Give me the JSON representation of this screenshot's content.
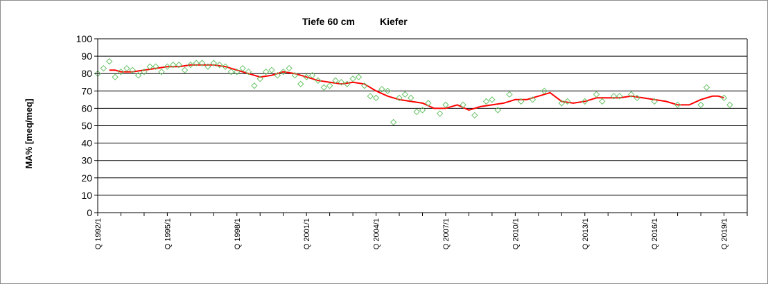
{
  "chart_data": {
    "type": "scatter",
    "title_left": "Tiefe  60 cm",
    "title_right": "Kiefer",
    "ylabel": "MA% [meq/meq]",
    "ylim": [
      0,
      100
    ],
    "yticks": [
      0,
      10,
      20,
      30,
      40,
      50,
      60,
      70,
      80,
      90,
      100
    ],
    "grid": "horizontal",
    "x_tick_labels": [
      {
        "label": "Q 1992/1",
        "t": 1992.0
      },
      {
        "label": "Q 1995/1",
        "t": 1995.0
      },
      {
        "label": "Q 1998/1",
        "t": 1998.0
      },
      {
        "label": "Q 2001/1",
        "t": 2001.0
      },
      {
        "label": "Q 2004/1",
        "t": 2004.0
      },
      {
        "label": "Q 2007/1",
        "t": 2007.0
      },
      {
        "label": "Q 2010/1",
        "t": 2010.0
      },
      {
        "label": "Q 2013/1",
        "t": 2013.0
      },
      {
        "label": "Q 2016/1",
        "t": 2016.0
      },
      {
        "label": "Q 2019/1",
        "t": 2019.0
      }
    ],
    "xlim": [
      1992.0,
      2020.0
    ],
    "colors": {
      "points": "#66c266",
      "trend": "#ff0000",
      "grid": "#000000"
    },
    "series": [
      {
        "marker": "diamond",
        "points": [
          [
            1992.0,
            80
          ],
          [
            1992.25,
            83
          ],
          [
            1992.5,
            87
          ],
          [
            1992.75,
            78
          ],
          [
            1993.0,
            81
          ],
          [
            1993.25,
            83
          ],
          [
            1993.5,
            82
          ],
          [
            1993.75,
            79
          ],
          [
            1994.0,
            81
          ],
          [
            1994.25,
            84
          ],
          [
            1994.5,
            84
          ],
          [
            1994.75,
            81
          ],
          [
            1995.0,
            84
          ],
          [
            1995.25,
            85
          ],
          [
            1995.5,
            85
          ],
          [
            1995.75,
            82
          ],
          [
            1996.0,
            85
          ],
          [
            1996.25,
            86
          ],
          [
            1996.5,
            86
          ],
          [
            1996.75,
            84
          ],
          [
            1997.0,
            86
          ],
          [
            1997.25,
            85
          ],
          [
            1997.5,
            84
          ],
          [
            1997.75,
            81
          ],
          [
            1998.0,
            81
          ],
          [
            1998.25,
            83
          ],
          [
            1998.5,
            81
          ],
          [
            1998.75,
            73
          ],
          [
            1999.0,
            77
          ],
          [
            1999.25,
            81
          ],
          [
            1999.5,
            82
          ],
          [
            1999.75,
            79
          ],
          [
            2000.0,
            81
          ],
          [
            2000.25,
            83
          ],
          [
            2000.5,
            79
          ],
          [
            2000.75,
            74
          ],
          [
            2001.0,
            78
          ],
          [
            2001.25,
            79
          ],
          [
            2001.5,
            76
          ],
          [
            2001.75,
            72
          ],
          [
            2002.0,
            73
          ],
          [
            2002.25,
            76
          ],
          [
            2002.5,
            75
          ],
          [
            2002.75,
            74
          ],
          [
            2003.0,
            77
          ],
          [
            2003.25,
            78
          ],
          [
            2003.5,
            73
          ],
          [
            2003.75,
            67
          ],
          [
            2004.0,
            66
          ],
          [
            2004.25,
            71
          ],
          [
            2004.5,
            70
          ],
          [
            2004.75,
            52
          ],
          [
            2005.0,
            66
          ],
          [
            2005.25,
            68
          ],
          [
            2005.5,
            66
          ],
          [
            2005.75,
            58
          ],
          [
            2006.0,
            59
          ],
          [
            2006.25,
            63
          ],
          [
            2006.75,
            57
          ],
          [
            2007.0,
            62
          ],
          [
            2007.75,
            62
          ],
          [
            2008.25,
            56
          ],
          [
            2008.75,
            64
          ],
          [
            2009.0,
            65
          ],
          [
            2009.25,
            59
          ],
          [
            2009.75,
            68
          ],
          [
            2010.25,
            64
          ],
          [
            2010.75,
            65
          ],
          [
            2011.25,
            70
          ],
          [
            2012.0,
            63
          ],
          [
            2012.25,
            64
          ],
          [
            2013.0,
            64
          ],
          [
            2013.5,
            68
          ],
          [
            2013.75,
            64
          ],
          [
            2014.25,
            67
          ],
          [
            2014.5,
            67
          ],
          [
            2015.0,
            68
          ],
          [
            2015.25,
            66
          ],
          [
            2016.0,
            64
          ],
          [
            2017.0,
            62
          ],
          [
            2018.0,
            62
          ],
          [
            2018.25,
            72
          ],
          [
            2019.0,
            66
          ],
          [
            2019.25,
            62
          ]
        ]
      },
      {
        "marker": "line",
        "points": [
          [
            1992.5,
            82
          ],
          [
            1992.75,
            82
          ],
          [
            1993.0,
            81
          ],
          [
            1993.5,
            81
          ],
          [
            1994.0,
            82
          ],
          [
            1994.5,
            83
          ],
          [
            1995.0,
            84
          ],
          [
            1995.5,
            84
          ],
          [
            1996.0,
            85
          ],
          [
            1996.5,
            85
          ],
          [
            1997.0,
            85
          ],
          [
            1997.5,
            84
          ],
          [
            1998.0,
            82
          ],
          [
            1998.5,
            80
          ],
          [
            1999.0,
            78
          ],
          [
            1999.5,
            79
          ],
          [
            2000.0,
            81
          ],
          [
            2000.5,
            80
          ],
          [
            2001.0,
            78
          ],
          [
            2001.5,
            76
          ],
          [
            2002.0,
            75
          ],
          [
            2002.5,
            74
          ],
          [
            2003.0,
            75
          ],
          [
            2003.5,
            74
          ],
          [
            2004.0,
            70
          ],
          [
            2004.5,
            67
          ],
          [
            2005.0,
            65
          ],
          [
            2005.5,
            64
          ],
          [
            2006.0,
            63
          ],
          [
            2006.5,
            60
          ],
          [
            2007.0,
            60
          ],
          [
            2007.5,
            62
          ],
          [
            2008.0,
            59
          ],
          [
            2008.5,
            61
          ],
          [
            2009.0,
            62
          ],
          [
            2009.5,
            63
          ],
          [
            2010.0,
            65
          ],
          [
            2010.5,
            65
          ],
          [
            2011.0,
            67
          ],
          [
            2011.5,
            69
          ],
          [
            2012.0,
            64
          ],
          [
            2012.5,
            63
          ],
          [
            2013.0,
            64
          ],
          [
            2013.5,
            66
          ],
          [
            2014.0,
            66
          ],
          [
            2014.5,
            66
          ],
          [
            2015.0,
            67
          ],
          [
            2015.5,
            66
          ],
          [
            2016.0,
            65
          ],
          [
            2016.5,
            64
          ],
          [
            2017.0,
            62
          ],
          [
            2017.5,
            62
          ],
          [
            2018.0,
            65
          ],
          [
            2018.5,
            67
          ],
          [
            2018.75,
            67
          ],
          [
            2019.0,
            66
          ]
        ]
      }
    ]
  }
}
